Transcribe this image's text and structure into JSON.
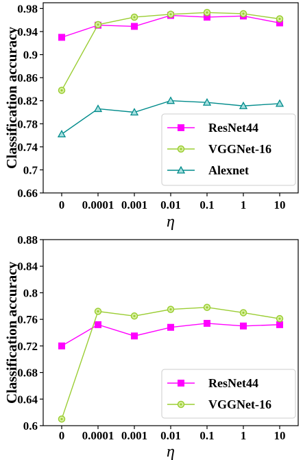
{
  "chart_data": [
    {
      "type": "line",
      "xlabel": "η",
      "ylabel": "Classification accuracy",
      "categories": [
        "0",
        "0.0001",
        "0.001",
        "0.01",
        "0.1",
        "1",
        "10"
      ],
      "ylim": [
        0.66,
        0.99
      ],
      "yticks": [
        "0.66",
        "0.7",
        "0.74",
        "0.78",
        "0.82",
        "0.86",
        "0.9",
        "0.94",
        "0.98"
      ],
      "grid": false,
      "legend_position": "bottom-right",
      "series": [
        {
          "name": "ResNet44",
          "marker": "square",
          "color": "#ff00ff",
          "values": [
            0.93,
            0.951,
            0.949,
            0.968,
            0.965,
            0.967,
            0.955
          ]
        },
        {
          "name": "VGGNet-16",
          "marker": "circle",
          "color": "#9acd32",
          "values": [
            0.838,
            0.952,
            0.965,
            0.97,
            0.973,
            0.971,
            0.962
          ]
        },
        {
          "name": "Alexnet",
          "marker": "triangle",
          "color": "#008b8b",
          "values": [
            0.762,
            0.806,
            0.8,
            0.82,
            0.817,
            0.811,
            0.815
          ]
        }
      ]
    },
    {
      "type": "line",
      "xlabel": "η",
      "ylabel": "Classification accuracy",
      "categories": [
        "0",
        "0.0001",
        "0.001",
        "0.01",
        "0.1",
        "1",
        "10"
      ],
      "ylim": [
        0.6,
        0.88
      ],
      "yticks": [
        "0.6",
        "0.64",
        "0.68",
        "0.72",
        "0.76",
        "0.8",
        "0.84",
        "0.88"
      ],
      "grid": false,
      "legend_position": "bottom-right",
      "series": [
        {
          "name": "ResNet44",
          "marker": "square",
          "color": "#ff00ff",
          "values": [
            0.72,
            0.752,
            0.735,
            0.748,
            0.754,
            0.75,
            0.752
          ]
        },
        {
          "name": "VGGNet-16",
          "marker": "circle",
          "color": "#9acd32",
          "values": [
            0.61,
            0.772,
            0.765,
            0.775,
            0.778,
            0.77,
            0.761
          ]
        }
      ]
    }
  ]
}
